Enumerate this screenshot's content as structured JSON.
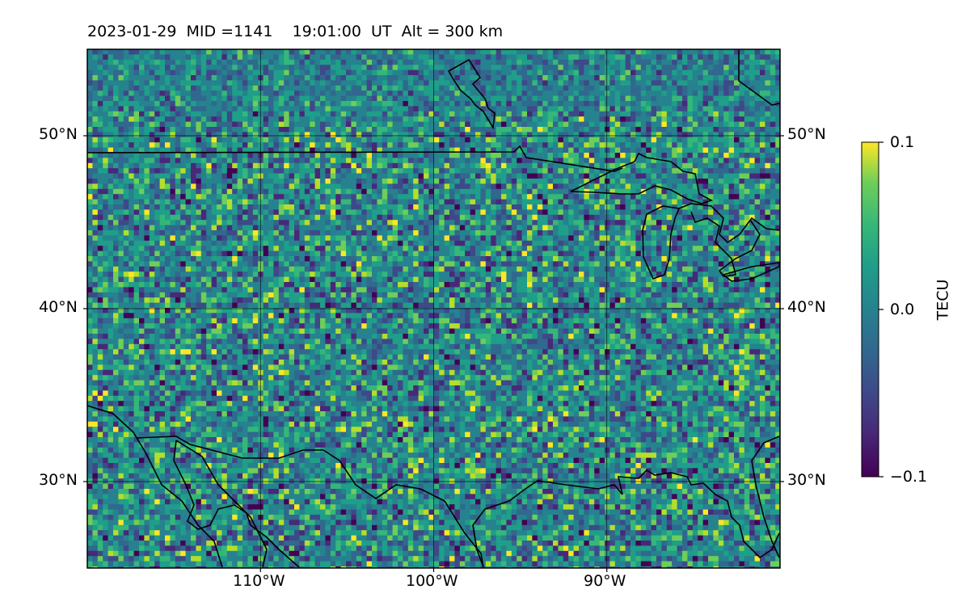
{
  "title": "2023-01-29  MID =1141    19:01:00  UT  Alt = 300 km",
  "map": {
    "lat_ticks": [
      "50°N",
      "40°N",
      "30°N"
    ],
    "lon_ticks": [
      "110°W",
      "100°W",
      "90°W"
    ],
    "lat_values": [
      50,
      40,
      30
    ],
    "lon_values": [
      -110,
      -100,
      -90
    ],
    "extent": {
      "lon_min": -120,
      "lon_max": -80,
      "lat_min": 25,
      "lat_max": 55
    },
    "gridlines": true,
    "coastlines": true,
    "borders": true,
    "colormap": "viridis",
    "colors": {
      "low": "#440154",
      "mid": "#21918c",
      "high": "#fde725"
    }
  },
  "colorbar": {
    "label": "TECU",
    "ticks": [
      "0.1",
      "0.0",
      "−0.1"
    ],
    "values": [
      0.1,
      0.0,
      -0.1
    ]
  }
}
